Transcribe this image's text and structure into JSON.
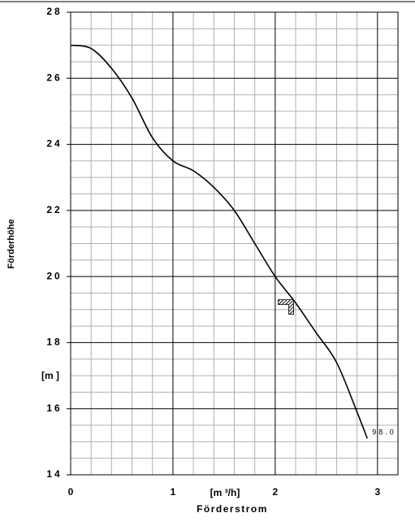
{
  "chart_data": {
    "type": "line",
    "x_label": "Förderstrom",
    "x_unit": "[m ³/h]",
    "y_label": "Förderhöhe",
    "y_unit": "[m ]",
    "xlim": [
      0,
      3.2
    ],
    "xticks": [
      0,
      1,
      2,
      3
    ],
    "minor_xticks": [
      0.2,
      0.4,
      0.6,
      0.8,
      1.2,
      1.4,
      1.6,
      1.8,
      2.2,
      2.4,
      2.6,
      2.8
    ],
    "ylim": [
      14,
      28
    ],
    "yticks": [
      14,
      16,
      18,
      20,
      22,
      24,
      26,
      28
    ],
    "minor_yticks": [
      14.5,
      15,
      15.5,
      16.5,
      17,
      17.5,
      18.5,
      19,
      19.5,
      20.5,
      21,
      21.5,
      22.5,
      23,
      23.5,
      24.5,
      25,
      25.5,
      26.5,
      27,
      27.5
    ],
    "grid": true,
    "series": [
      {
        "name": "98.0",
        "color": "#000000",
        "x": [
          0,
          0.2,
          0.4,
          0.6,
          0.8,
          1.0,
          1.2,
          1.4,
          1.6,
          1.8,
          2.0,
          2.2,
          2.4,
          2.6,
          2.8,
          2.9
        ],
        "values": [
          27,
          26.9,
          26.3,
          25.4,
          24.2,
          23.5,
          23.2,
          22.7,
          22.0,
          21.0,
          20.0,
          19.2,
          18.3,
          17.4,
          15.9,
          15.1
        ]
      }
    ],
    "operating_point": {
      "x": 2.18,
      "y": 19.3
    }
  }
}
